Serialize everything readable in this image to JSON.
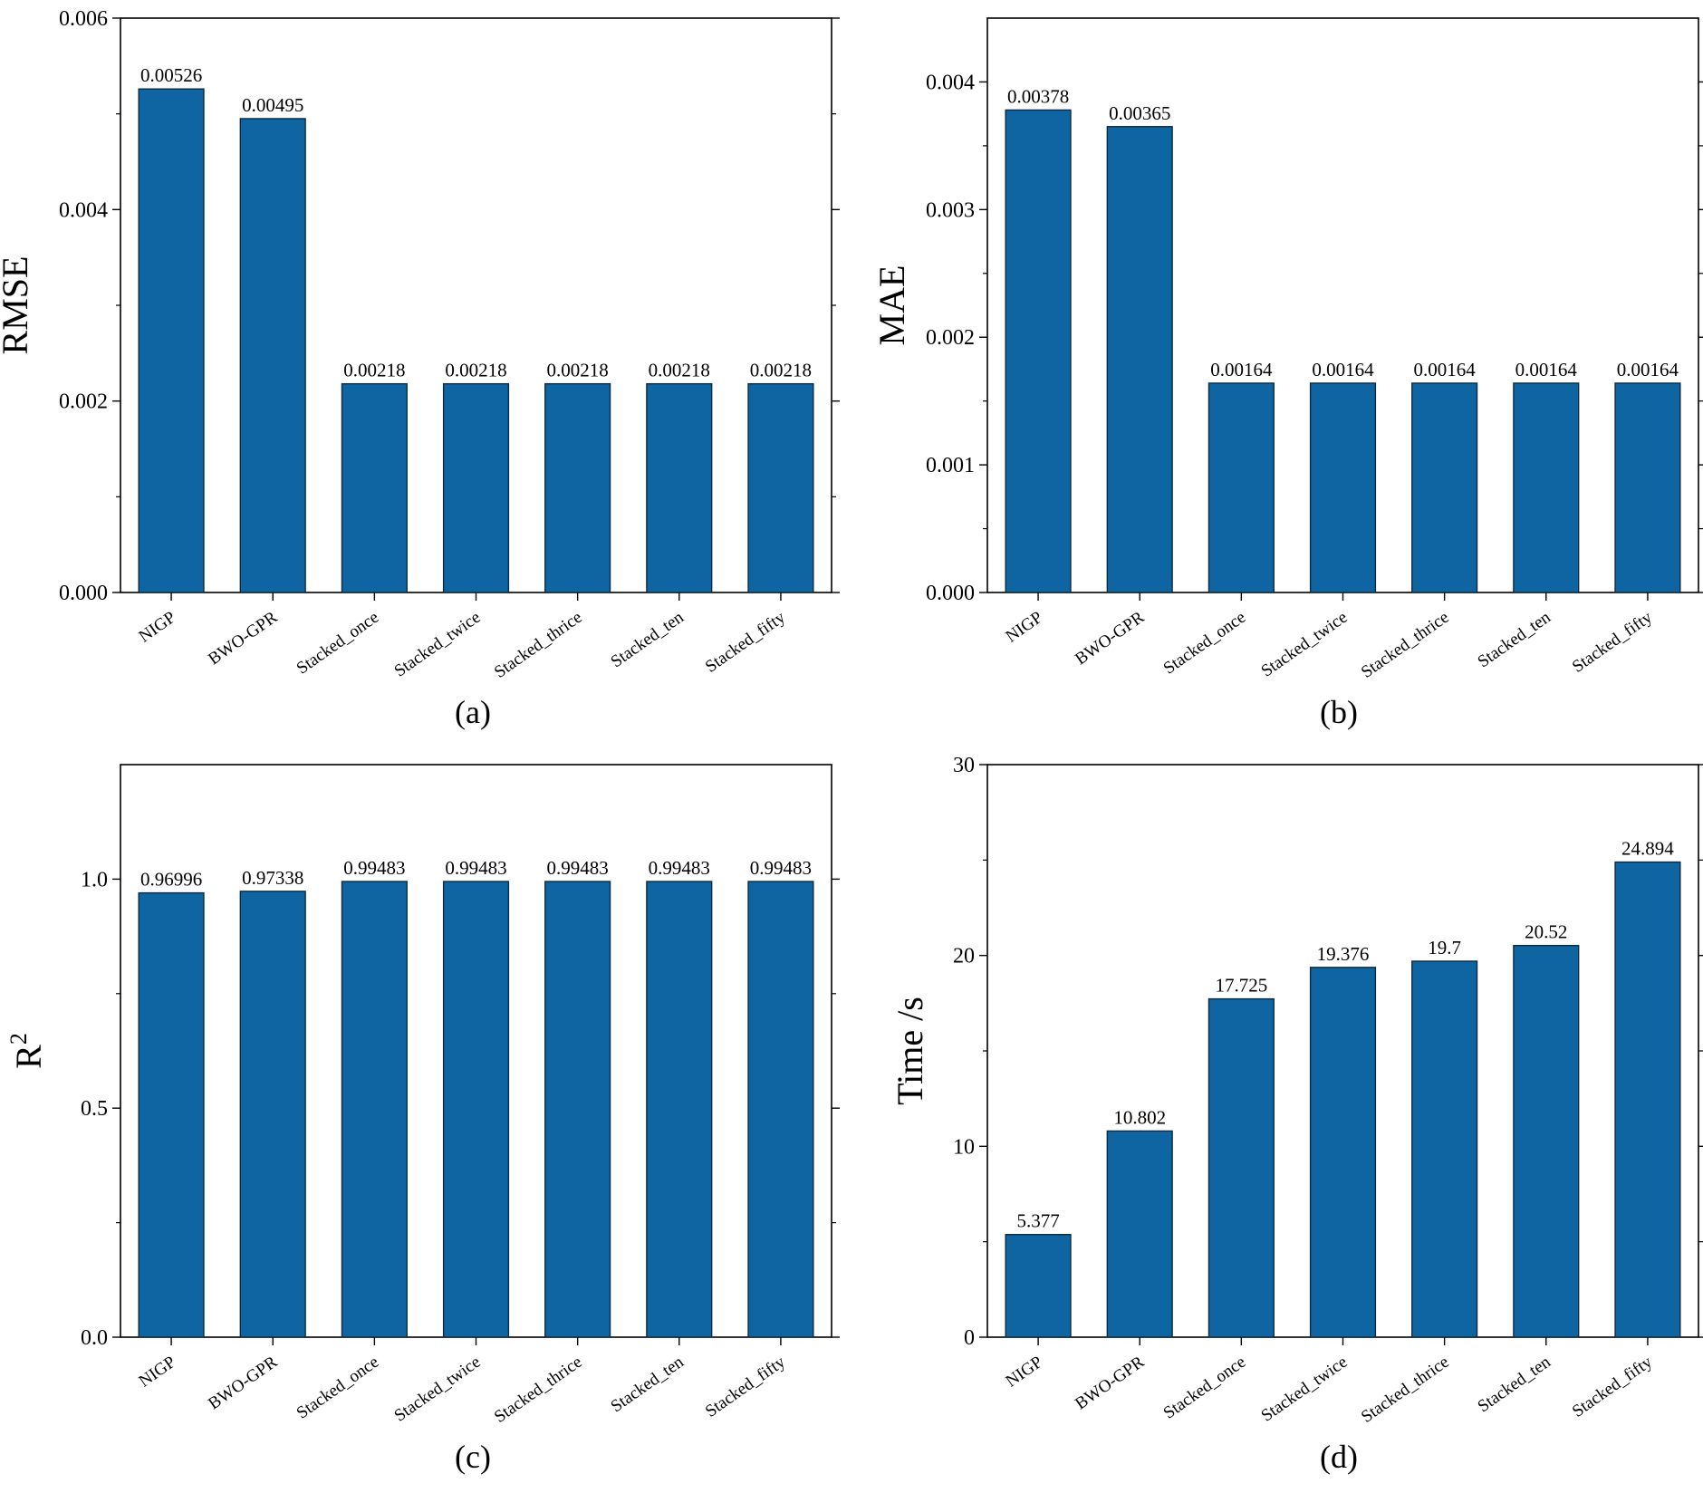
{
  "colors": {
    "bar": "#0f65a1",
    "bar_edge": "#0d2a42",
    "axis": "#000000"
  },
  "chart_data": [
    {
      "type": "bar",
      "panel_label": "(a)",
      "ylabel": "RMSE",
      "ylabel_sup": "",
      "categories": [
        "NIGP",
        "BWO-GPR",
        "Stacked_once",
        "Stacked_twice",
        "Stacked_thrice",
        "Stacked_ten",
        "Stacked_fifty"
      ],
      "values": [
        0.00526,
        0.00495,
        0.00218,
        0.00218,
        0.00218,
        0.00218,
        0.00218
      ],
      "value_labels": [
        "0.00526",
        "0.00495",
        "0.00218",
        "0.00218",
        "0.00218",
        "0.00218",
        "0.00218"
      ],
      "ylim": [
        0,
        0.006
      ],
      "yticks": [
        0,
        0.002,
        0.004,
        0.006
      ],
      "ytick_labels": [
        "0.000",
        "0.002",
        "0.004",
        "0.006"
      ],
      "minor_step": 0.001
    },
    {
      "type": "bar",
      "panel_label": "(b)",
      "ylabel": "MAE",
      "ylabel_sup": "",
      "categories": [
        "NIGP",
        "BWO-GPR",
        "Stacked_once",
        "Stacked_twice",
        "Stacked_thrice",
        "Stacked_ten",
        "Stacked_fifty"
      ],
      "values": [
        0.00378,
        0.00365,
        0.00164,
        0.00164,
        0.00164,
        0.00164,
        0.00164
      ],
      "value_labels": [
        "0.00378",
        "0.00365",
        "0.00164",
        "0.00164",
        "0.00164",
        "0.00164",
        "0.00164"
      ],
      "ylim": [
        0,
        0.0045
      ],
      "yticks": [
        0,
        0.001,
        0.002,
        0.003,
        0.004
      ],
      "ytick_labels": [
        "0.000",
        "0.001",
        "0.002",
        "0.003",
        "0.004"
      ],
      "minor_step": 0.0005
    },
    {
      "type": "bar",
      "panel_label": "(c)",
      "ylabel": "R",
      "ylabel_sup": "2",
      "categories": [
        "NIGP",
        "BWO-GPR",
        "Stacked_once",
        "Stacked_twice",
        "Stacked_thrice",
        "Stacked_ten",
        "Stacked_fifty"
      ],
      "values": [
        0.96996,
        0.97338,
        0.99483,
        0.99483,
        0.99483,
        0.99483,
        0.99483
      ],
      "value_labels": [
        "0.96996",
        "0.97338",
        "0.99483",
        "0.99483",
        "0.99483",
        "0.99483",
        "0.99483"
      ],
      "ylim": [
        0,
        1.25
      ],
      "yticks": [
        0,
        0.5,
        1.0
      ],
      "ytick_labels": [
        "0.0",
        "0.5",
        "1.0"
      ],
      "minor_step": 0.25
    },
    {
      "type": "bar",
      "panel_label": "(d)",
      "ylabel": "Time /s",
      "ylabel_sup": "",
      "categories": [
        "NIGP",
        "BWO-GPR",
        "Stacked_once",
        "Stacked_twice",
        "Stacked_thrice",
        "Stacked_ten",
        "Stacked_fifty"
      ],
      "values": [
        5.377,
        10.802,
        17.725,
        19.376,
        19.7,
        20.52,
        24.894
      ],
      "value_labels": [
        "5.377",
        "10.802",
        "17.725",
        "19.376",
        "19.7",
        "20.52",
        "24.894"
      ],
      "ylim": [
        0,
        30
      ],
      "yticks": [
        0,
        10,
        20,
        30
      ],
      "ytick_labels": [
        "0",
        "10",
        "20",
        "30"
      ],
      "minor_step": 5
    }
  ]
}
